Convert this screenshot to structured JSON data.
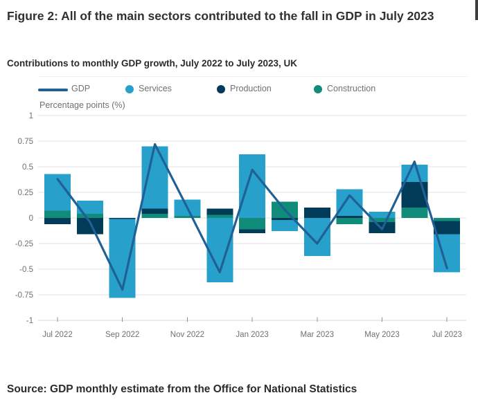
{
  "figure": {
    "title": "Figure 2: All of the main sectors contributed to the fall in GDP in July 2023",
    "subtitle": "Contributions to monthly GDP growth, July 2022 to July 2023, UK",
    "axis_label": "Percentage points (%)",
    "source": "Source: GDP monthly estimate from the Office for National Statistics"
  },
  "legend": [
    {
      "label": "GDP",
      "marker": "line-swatch",
      "color": "#206095"
    },
    {
      "label": "Services",
      "marker": "dot",
      "color": "#27A0CC"
    },
    {
      "label": "Production",
      "marker": "dot",
      "color": "#003C57"
    },
    {
      "label": "Construction",
      "marker": "dot",
      "color": "#118C7B"
    }
  ],
  "colors": {
    "gdp_line": "#206095",
    "services": "#27A0CC",
    "production": "#003C57",
    "construction": "#118C7B",
    "grid": "#e2e2e2",
    "axis_line": "#d9d9d9",
    "tick": "#8f8f8f",
    "axis_text": "#707070"
  },
  "chart_data": {
    "type": "bar",
    "subtype": "stacked-bars-with-line-overlay",
    "title": "Contributions to monthly GDP growth, July 2022 to July 2023, UK",
    "xlabel": "",
    "ylabel": "Percentage points (%)",
    "ylim": [
      -1,
      1
    ],
    "grid": "horizontal",
    "legend_position": "top",
    "categories": [
      "Jul 2022",
      "Aug 2022",
      "Sep 2022",
      "Oct 2022",
      "Nov 2022",
      "Dec 2022",
      "Jan 2023",
      "Feb 2023",
      "Mar 2023",
      "Apr 2023",
      "May 2023",
      "Jun 2023",
      "Jul 2023"
    ],
    "x_tick_labels": [
      "Jul 2022",
      "Sep 2022",
      "Nov 2022",
      "Jan 2023",
      "Mar 2023",
      "May 2023",
      "Jul 2023"
    ],
    "x_tick_indices": [
      0,
      2,
      4,
      6,
      8,
      10,
      12
    ],
    "y_ticks": [
      1,
      0.75,
      0.5,
      0.25,
      0,
      -0.25,
      -0.5,
      -0.75,
      -1
    ],
    "y_tick_labels": [
      "1",
      "0.75",
      "0.5",
      "0.25",
      "0",
      "-0.25",
      "-0.5",
      "-0.75",
      "-1"
    ],
    "series": [
      {
        "name": "Services",
        "color_key": "services",
        "values": [
          0.36,
          0.13,
          -0.77,
          0.61,
          0.16,
          -0.63,
          0.62,
          -0.11,
          -0.37,
          0.26,
          0.06,
          0.17,
          -0.37
        ]
      },
      {
        "name": "Production",
        "color_key": "production",
        "values": [
          -0.06,
          -0.16,
          -0.01,
          0.05,
          0.0,
          0.06,
          -0.04,
          -0.02,
          0.1,
          0.02,
          -0.11,
          0.25,
          -0.13
        ]
      },
      {
        "name": "Construction",
        "color_key": "construction",
        "values": [
          0.07,
          0.04,
          0.0,
          0.04,
          0.02,
          0.03,
          -0.11,
          0.16,
          0.0,
          -0.06,
          -0.04,
          0.1,
          -0.03
        ]
      }
    ],
    "line_series": {
      "name": "GDP",
      "color_key": "gdp_line",
      "values": [
        0.38,
        -0.04,
        -0.7,
        0.72,
        0.1,
        -0.53,
        0.47,
        0.08,
        -0.25,
        0.22,
        -0.11,
        0.55,
        -0.49
      ]
    }
  }
}
